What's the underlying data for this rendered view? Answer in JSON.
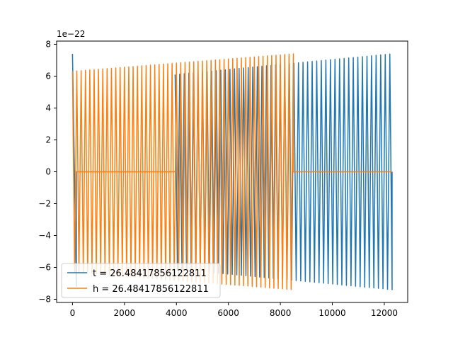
{
  "chart_data": {
    "type": "line",
    "title": "",
    "xlabel": "",
    "ylabel": "",
    "y_offset_label": "1e−22",
    "xlim": [
      -610,
      12900
    ],
    "ylim": [
      -8.2,
      8.2
    ],
    "x_ticks": [
      0,
      2000,
      4000,
      6000,
      8000,
      10000,
      12000
    ],
    "y_ticks": [
      -8,
      -6,
      -4,
      -2,
      0,
      2,
      4,
      6,
      8
    ],
    "x_tick_labels": [
      "0",
      "2000",
      "4000",
      "6000",
      "8000",
      "10000",
      "12000"
    ],
    "y_tick_labels": [
      "−8",
      "−6",
      "−4",
      "−2",
      "0",
      "2",
      "4",
      "6",
      "8"
    ],
    "grid": false,
    "legend_position": "lower-left",
    "series": [
      {
        "name": "t = 26.48417856122811",
        "color": "#1f77b4",
        "segments": [
          {
            "x_start": 0,
            "x_end": 150,
            "amp_start": 7.4,
            "amp_end": 7.2,
            "cycles": 1
          },
          {
            "x_start": 3950,
            "x_end": 12300,
            "amp_start": 6.1,
            "amp_end": 7.4,
            "cycles": 95
          }
        ]
      },
      {
        "name": "h = 26.48417856122811",
        "color": "#ff7f0e",
        "segments": [
          {
            "x_start": 0,
            "x_end": 8500,
            "amp_start": 6.3,
            "amp_end": 7.4,
            "cycles": 102
          },
          {
            "x_start": 100,
            "x_end": 3950,
            "flat_value": 0
          },
          {
            "x_start": 8500,
            "x_end": 12300,
            "flat_value": 0
          }
        ]
      }
    ]
  }
}
